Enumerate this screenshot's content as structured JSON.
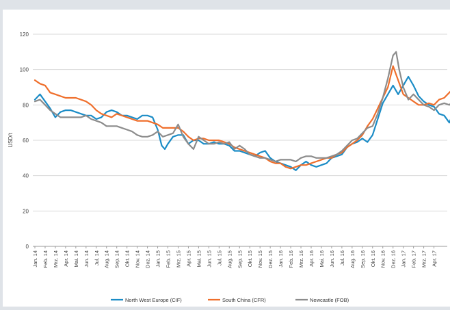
{
  "chart_data": {
    "type": "line",
    "title": "",
    "xlabel": "",
    "ylabel": "USD/t",
    "ylim": [
      0,
      120
    ],
    "yticks": [
      0,
      20,
      40,
      60,
      80,
      100,
      120
    ],
    "grid": "horizontal",
    "legend_position": "bottom",
    "x_tick_labels": [
      "Jan. 14",
      "Feb. 14",
      "Mrz. 14",
      "Apr. 14",
      "Mai. 14",
      "Jun. 14",
      "Jul. 14",
      "Aug. 14",
      "Sep. 14",
      "Okt. 14",
      "Nov. 14",
      "Dez. 14",
      "Jan. 15",
      "Feb. 15",
      "Mrz. 15",
      "Apr. 15",
      "Mai. 15",
      "Jun. 15",
      "Jul. 15",
      "Aug. 15",
      "Sep. 15",
      "Okt. 15",
      "Nov. 15",
      "Dez. 15",
      "Jan. 16",
      "Feb. 16",
      "Mrz. 16",
      "Apr. 16",
      "Mai. 16",
      "Jun. 16",
      "Jul. 16",
      "Aug. 16",
      "Sep. 16",
      "Okt. 16",
      "Nov. 16",
      "Dez. 16",
      "Jan. 17",
      "Feb. 17",
      "Mrz. 17",
      "Apr. 17"
    ],
    "series": [
      {
        "name": "North West Europe (CIF)",
        "color": "#1b8cc6",
        "values": [
          [
            0,
            83
          ],
          [
            0.5,
            86
          ],
          [
            1,
            82
          ],
          [
            1.5,
            78
          ],
          [
            2,
            73
          ],
          [
            2.5,
            76
          ],
          [
            3,
            77
          ],
          [
            3.5,
            77
          ],
          [
            4,
            76
          ],
          [
            5,
            74
          ],
          [
            5.5,
            74
          ],
          [
            6,
            72
          ],
          [
            6.5,
            73
          ],
          [
            7,
            76
          ],
          [
            7.5,
            77
          ],
          [
            8,
            76
          ],
          [
            8.5,
            74
          ],
          [
            9,
            74
          ],
          [
            9.5,
            73
          ],
          [
            10,
            72
          ],
          [
            10.5,
            74
          ],
          [
            11,
            74
          ],
          [
            11.5,
            73
          ],
          [
            12,
            66
          ],
          [
            12.4,
            57
          ],
          [
            12.7,
            55
          ],
          [
            13,
            58
          ],
          [
            13.5,
            62
          ],
          [
            14,
            63
          ],
          [
            14.5,
            63
          ],
          [
            15,
            58
          ],
          [
            15.5,
            60
          ],
          [
            16,
            60
          ],
          [
            16.5,
            58
          ],
          [
            17,
            58
          ],
          [
            17.5,
            59
          ],
          [
            18,
            58
          ],
          [
            18.5,
            58
          ],
          [
            19,
            57
          ],
          [
            19.5,
            54
          ],
          [
            20,
            54
          ],
          [
            20.5,
            53
          ],
          [
            21,
            52
          ],
          [
            21.5,
            51
          ],
          [
            22,
            53
          ],
          [
            22.5,
            54
          ],
          [
            23,
            50
          ],
          [
            23.5,
            48
          ],
          [
            24,
            47
          ],
          [
            24.5,
            46
          ],
          [
            25,
            45
          ],
          [
            25.5,
            43
          ],
          [
            26,
            46
          ],
          [
            26.5,
            48
          ],
          [
            27,
            46
          ],
          [
            27.5,
            45
          ],
          [
            28,
            46
          ],
          [
            28.5,
            47
          ],
          [
            29,
            50
          ],
          [
            29.5,
            51
          ],
          [
            30,
            52
          ],
          [
            30.5,
            56
          ],
          [
            31,
            58
          ],
          [
            31.5,
            59
          ],
          [
            32,
            61
          ],
          [
            32.5,
            59
          ],
          [
            33,
            63
          ],
          [
            33.5,
            72
          ],
          [
            34,
            81
          ],
          [
            34.5,
            86
          ],
          [
            35,
            91
          ],
          [
            35.5,
            86
          ],
          [
            36,
            91
          ],
          [
            36.5,
            96
          ],
          [
            37,
            91
          ],
          [
            37.5,
            85
          ],
          [
            38,
            82
          ],
          [
            38.5,
            80
          ],
          [
            39,
            79
          ],
          [
            39.5,
            75
          ],
          [
            40,
            74
          ],
          [
            40.5,
            70
          ],
          [
            41,
            77
          ],
          [
            41.5,
            76
          ]
        ]
      },
      {
        "name": "South China (CFR)",
        "color": "#ef6f2c",
        "values": [
          [
            0,
            94
          ],
          [
            0.5,
            92
          ],
          [
            1,
            91
          ],
          [
            1.5,
            87
          ],
          [
            2,
            86
          ],
          [
            2.5,
            85
          ],
          [
            3,
            84
          ],
          [
            3.5,
            84
          ],
          [
            4,
            84
          ],
          [
            4.5,
            83
          ],
          [
            5,
            82
          ],
          [
            5.5,
            80
          ],
          [
            6,
            77
          ],
          [
            6.5,
            75
          ],
          [
            7,
            74
          ],
          [
            7.5,
            73
          ],
          [
            8,
            75
          ],
          [
            8.5,
            74
          ],
          [
            9,
            73
          ],
          [
            9.5,
            72
          ],
          [
            10,
            71
          ],
          [
            10.5,
            71
          ],
          [
            11,
            71
          ],
          [
            11.5,
            70
          ],
          [
            12,
            69
          ],
          [
            12.5,
            67
          ],
          [
            13,
            67
          ],
          [
            13.5,
            67
          ],
          [
            14,
            67
          ],
          [
            14.5,
            65
          ],
          [
            15,
            62
          ],
          [
            15.5,
            60
          ],
          [
            16,
            61
          ],
          [
            16.5,
            61
          ],
          [
            17,
            60
          ],
          [
            17.5,
            60
          ],
          [
            18,
            60
          ],
          [
            18.5,
            59
          ],
          [
            19,
            58
          ],
          [
            19.5,
            56
          ],
          [
            20,
            55
          ],
          [
            20.5,
            54
          ],
          [
            21,
            53
          ],
          [
            21.5,
            52
          ],
          [
            22,
            51
          ],
          [
            22.5,
            50
          ],
          [
            23,
            48
          ],
          [
            23.5,
            47
          ],
          [
            24,
            47
          ],
          [
            24.5,
            45
          ],
          [
            25,
            44
          ],
          [
            25.5,
            45
          ],
          [
            26,
            46
          ],
          [
            26.5,
            46
          ],
          [
            27,
            47
          ],
          [
            27.5,
            48
          ],
          [
            28,
            49
          ],
          [
            28.5,
            50
          ],
          [
            29,
            50
          ],
          [
            29.5,
            52
          ],
          [
            30,
            53
          ],
          [
            30.5,
            56
          ],
          [
            31,
            58
          ],
          [
            31.5,
            60
          ],
          [
            32,
            63
          ],
          [
            32.5,
            68
          ],
          [
            33,
            72
          ],
          [
            33.5,
            78
          ],
          [
            34,
            84
          ],
          [
            34.5,
            90
          ],
          [
            35,
            102
          ],
          [
            35.5,
            94
          ],
          [
            36,
            86
          ],
          [
            36.5,
            84
          ],
          [
            37,
            82
          ],
          [
            37.5,
            80
          ],
          [
            38,
            80
          ],
          [
            38.5,
            81
          ],
          [
            39,
            80
          ],
          [
            39.5,
            83
          ],
          [
            40,
            84
          ],
          [
            40.5,
            87
          ],
          [
            41,
            90
          ],
          [
            41.5,
            89
          ]
        ]
      },
      {
        "name": "Newcastle (FOB)",
        "color": "#8c8c8c",
        "values": [
          [
            0,
            82
          ],
          [
            0.5,
            83
          ],
          [
            1,
            80
          ],
          [
            1.5,
            77
          ],
          [
            2,
            75
          ],
          [
            2.5,
            73
          ],
          [
            3,
            73
          ],
          [
            3.5,
            73
          ],
          [
            4,
            73
          ],
          [
            4.5,
            73
          ],
          [
            5,
            74
          ],
          [
            5.5,
            72
          ],
          [
            6,
            71
          ],
          [
            6.5,
            70
          ],
          [
            7,
            68
          ],
          [
            7.5,
            68
          ],
          [
            8,
            68
          ],
          [
            8.5,
            67
          ],
          [
            9,
            66
          ],
          [
            9.5,
            65
          ],
          [
            10,
            63
          ],
          [
            10.5,
            62
          ],
          [
            11,
            62
          ],
          [
            11.5,
            63
          ],
          [
            12,
            65
          ],
          [
            12.5,
            62
          ],
          [
            13,
            63
          ],
          [
            13.5,
            64
          ],
          [
            14,
            69
          ],
          [
            14.5,
            62
          ],
          [
            15,
            58
          ],
          [
            15.5,
            55
          ],
          [
            16,
            62
          ],
          [
            16.5,
            60
          ],
          [
            17,
            58
          ],
          [
            17.5,
            58
          ],
          [
            18,
            59
          ],
          [
            18.5,
            58
          ],
          [
            19,
            59
          ],
          [
            19.5,
            55
          ],
          [
            20,
            57
          ],
          [
            20.5,
            55
          ],
          [
            21,
            52
          ],
          [
            21.5,
            51
          ],
          [
            22,
            50
          ],
          [
            22.5,
            50
          ],
          [
            23,
            49
          ],
          [
            23.5,
            48
          ],
          [
            24,
            49
          ],
          [
            24.5,
            49
          ],
          [
            25,
            49
          ],
          [
            25.5,
            48
          ],
          [
            26,
            50
          ],
          [
            26.5,
            51
          ],
          [
            27,
            51
          ],
          [
            27.5,
            50
          ],
          [
            28,
            50
          ],
          [
            28.5,
            50
          ],
          [
            29,
            51
          ],
          [
            29.5,
            52
          ],
          [
            30,
            54
          ],
          [
            30.5,
            57
          ],
          [
            31,
            60
          ],
          [
            31.5,
            61
          ],
          [
            32,
            64
          ],
          [
            32.5,
            67
          ],
          [
            33,
            68
          ],
          [
            33.5,
            75
          ],
          [
            34,
            84
          ],
          [
            34.5,
            95
          ],
          [
            35,
            108
          ],
          [
            35.3,
            110
          ],
          [
            35.6,
            100
          ],
          [
            36,
            90
          ],
          [
            36.5,
            83
          ],
          [
            37,
            86
          ],
          [
            37.5,
            83
          ],
          [
            38,
            80
          ],
          [
            38.5,
            79
          ],
          [
            39,
            77
          ],
          [
            39.5,
            80
          ],
          [
            40,
            81
          ],
          [
            40.5,
            80
          ],
          [
            41,
            83
          ],
          [
            41.5,
            82
          ]
        ]
      }
    ]
  }
}
